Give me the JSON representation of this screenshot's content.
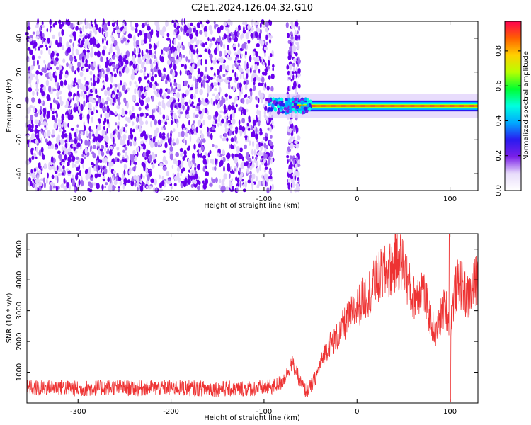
{
  "title": "C2E1.2024.126.04.32.G10",
  "colors": {
    "frame": "#000000",
    "snr_line": "#ee3333",
    "scatter_dark": "#6a00ee",
    "scatter_mid": "#a36bf2",
    "scatter_light": "#e2d3fb",
    "colormap": [
      "#ffffff",
      "#e8dcfb",
      "#7a1fe8",
      "#2a1af0",
      "#00a8ff",
      "#00ffe0",
      "#00ff30",
      "#b8ff00",
      "#ffd000",
      "#ff6000",
      "#ff0050"
    ]
  },
  "chart_data": [
    {
      "type": "heatmap",
      "xlabel": "Height of straight line (km)",
      "ylabel": "Frequency (Hz)",
      "xlim": [
        -355,
        130
      ],
      "ylim": [
        -50,
        50
      ],
      "xticks": [
        "-300",
        "-200",
        "-100",
        "0",
        "100"
      ],
      "yticks": [
        "-40",
        "-20",
        "0",
        "20",
        "40"
      ],
      "colorbar": {
        "label": "Normalized spectral amplitude",
        "range": [
          0,
          0.97
        ],
        "ticks": [
          "0.0",
          "0.2",
          "0.4",
          "0.6",
          "0.8"
        ]
      },
      "regions": [
        {
          "x": [
            -355,
            -90
          ],
          "y": [
            -50,
            50
          ],
          "description_value": "noise",
          "level": 0.1
        },
        {
          "x": [
            -75,
            -62
          ],
          "y": [
            -50,
            50
          ],
          "level": 0.1
        },
        {
          "x": [
            -95,
            130
          ],
          "y": [
            -3,
            3
          ],
          "level": 0.9
        }
      ],
      "grid": false
    },
    {
      "type": "line",
      "xlabel": "Height of straight line (km)",
      "ylabel": "SNR (10 * v/v)",
      "xlim": [
        -355,
        130
      ],
      "ylim": [
        0,
        5500
      ],
      "xticks": [
        "-300",
        "-200",
        "-100",
        "0",
        "100"
      ],
      "yticks": [
        "1000",
        "2000",
        "3000",
        "4000",
        "5000"
      ],
      "series": [
        {
          "x": [
            -355,
            -340,
            -320,
            -300,
            -280,
            -260,
            -240,
            -220,
            -200,
            -180,
            -160,
            -140,
            -120,
            -100,
            -90,
            -80,
            -75,
            -70,
            -65,
            -60,
            -55,
            -50,
            -45,
            -40,
            -35,
            -30,
            -25,
            -20,
            -15,
            -10,
            -5,
            0,
            5,
            10,
            15,
            20,
            25,
            30,
            35,
            40,
            45,
            50,
            55,
            60,
            65,
            70,
            75,
            80,
            85,
            90,
            95,
            100,
            105,
            110,
            115,
            120,
            125,
            130
          ],
          "values": [
            500,
            480,
            520,
            460,
            490,
            510,
            470,
            490,
            500,
            480,
            470,
            460,
            470,
            500,
            540,
            700,
            1000,
            1300,
            1000,
            600,
            400,
            500,
            800,
            1200,
            1600,
            1900,
            2000,
            2200,
            2500,
            2700,
            2900,
            3100,
            3300,
            3500,
            3700,
            3900,
            4100,
            4200,
            4300,
            4500,
            4600,
            4500,
            3900,
            3400,
            3600,
            3800,
            3200,
            2600,
            2200,
            2800,
            3200,
            2500,
            3600,
            4000,
            3600,
            3400,
            3800,
            4100
          ]
        }
      ],
      "grid": false
    }
  ]
}
